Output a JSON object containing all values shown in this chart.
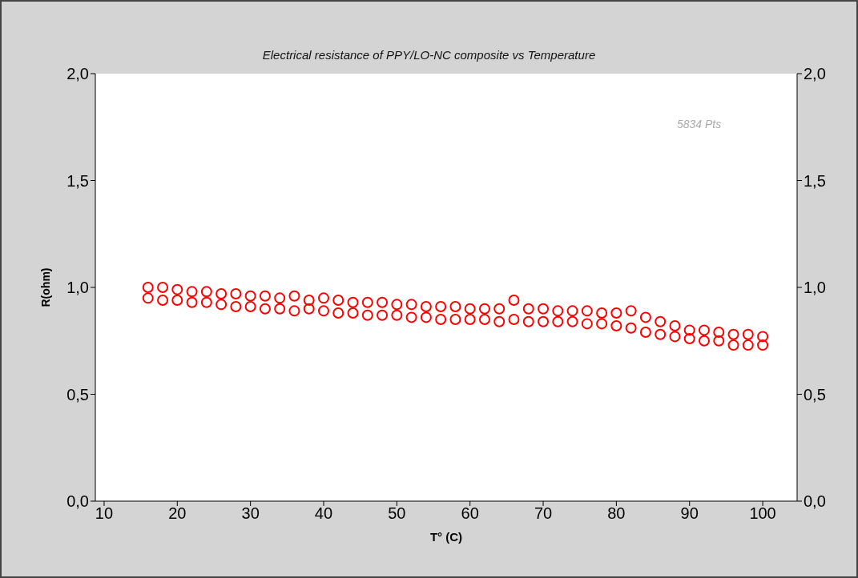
{
  "chart_data": {
    "type": "scatter",
    "title": "Electrical resistance of  PPY/LO-NC composite  vs Temperature",
    "xlabel": "T° (C)",
    "ylabel": "R(ohm)",
    "annotations": [
      "5834 Pts"
    ],
    "marker": "circle",
    "grid": false,
    "legend": false,
    "xlim": [
      8.8,
      104.7
    ],
    "xticks": [
      10,
      20,
      30,
      40,
      50,
      60,
      70,
      80,
      90,
      100
    ],
    "ylim": [
      0,
      2
    ],
    "yticks": [
      {
        "value": 0,
        "label": "0,0"
      },
      {
        "value": 0.5,
        "label": "0,5"
      },
      {
        "value": 1,
        "label": "1,0"
      },
      {
        "value": 1.5,
        "label": "1,5"
      },
      {
        "value": 2,
        "label": "2,0"
      }
    ],
    "y2lim": [
      0,
      2
    ],
    "y2ticks": [
      {
        "value": 0,
        "label": "0,0"
      },
      {
        "value": 0.5,
        "label": "0,5"
      },
      {
        "value": 1,
        "label": "1,0"
      },
      {
        "value": 1.5,
        "label": "1,5"
      },
      {
        "value": 2,
        "label": "2,0"
      }
    ],
    "series": [
      {
        "color": "#ff0000",
        "x": [
          16,
          16,
          18,
          18,
          20,
          20,
          22,
          22,
          24,
          24,
          26,
          26,
          28,
          28,
          30,
          30,
          32,
          32,
          34,
          34,
          36,
          36,
          38,
          38,
          40,
          40,
          42,
          42,
          44,
          44,
          46,
          46,
          48,
          48,
          50,
          50,
          52,
          52,
          54,
          54,
          56,
          56,
          58,
          58,
          60,
          60,
          62,
          62,
          64,
          64,
          66,
          66,
          68,
          68,
          70,
          70,
          72,
          72,
          74,
          74,
          76,
          76,
          78,
          78,
          80,
          80,
          82,
          82,
          84,
          84,
          86,
          86,
          88,
          88,
          90,
          90,
          92,
          92,
          94,
          94,
          96,
          96,
          98,
          98,
          100,
          100
        ],
        "values": [
          1.0,
          0.95,
          1.0,
          0.94,
          0.99,
          0.94,
          0.98,
          0.93,
          0.98,
          0.93,
          0.97,
          0.92,
          0.97,
          0.91,
          0.96,
          0.91,
          0.96,
          0.9,
          0.95,
          0.9,
          0.96,
          0.89,
          0.94,
          0.9,
          0.95,
          0.89,
          0.94,
          0.88,
          0.93,
          0.88,
          0.93,
          0.87,
          0.93,
          0.87,
          0.92,
          0.87,
          0.92,
          0.86,
          0.91,
          0.86,
          0.91,
          0.85,
          0.91,
          0.85,
          0.9,
          0.85,
          0.9,
          0.85,
          0.9,
          0.84,
          0.94,
          0.85,
          0.9,
          0.84,
          0.9,
          0.84,
          0.89,
          0.84,
          0.89,
          0.84,
          0.89,
          0.83,
          0.88,
          0.83,
          0.88,
          0.82,
          0.89,
          0.81,
          0.86,
          0.79,
          0.84,
          0.78,
          0.82,
          0.77,
          0.8,
          0.76,
          0.8,
          0.75,
          0.79,
          0.75,
          0.78,
          0.73,
          0.78,
          0.73,
          0.77,
          0.73
        ]
      }
    ]
  }
}
